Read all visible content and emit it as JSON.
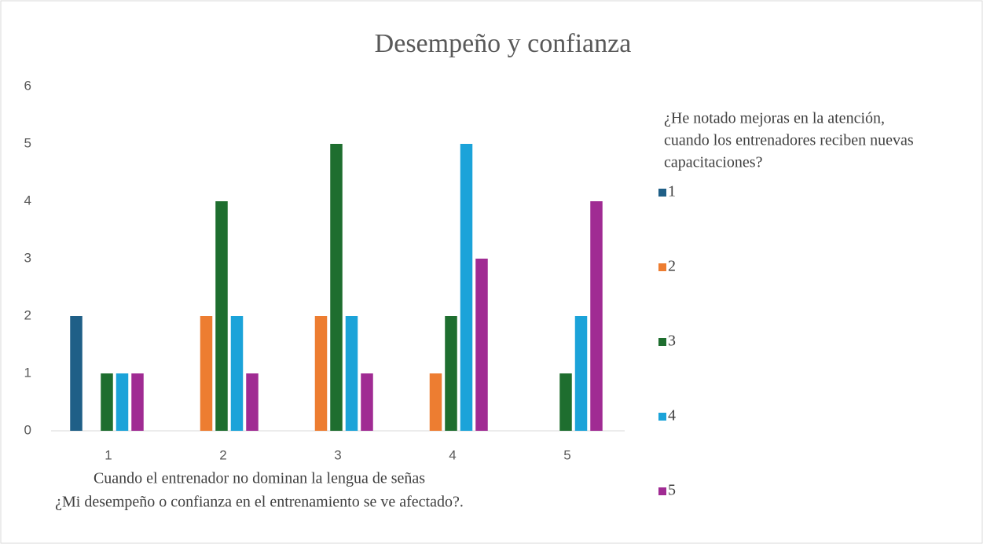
{
  "chart_data": {
    "type": "bar",
    "title": "Desempeño y confianza",
    "xlabel": [
      "Cuando el entrenador no dominan la lengua de señas",
      "¿Mi desempeño o confianza en el entrenamiento se ve afectado?."
    ],
    "legend_title": [
      "¿He notado mejoras en la atención,",
      "cuando los entrenadores reciben nuevas",
      "capacitaciones?"
    ],
    "legend": "right",
    "grid": false,
    "categories": [
      "1",
      "2",
      "3",
      "4",
      "5"
    ],
    "series": [
      {
        "name": "1",
        "color": "#1f5f87",
        "values": [
          2,
          0,
          0,
          0,
          0
        ]
      },
      {
        "name": "2",
        "color": "#ed7d31",
        "values": [
          0,
          2,
          2,
          1,
          0
        ]
      },
      {
        "name": "3",
        "color": "#1e6e2f",
        "values": [
          1,
          4,
          5,
          2,
          1
        ]
      },
      {
        "name": "4",
        "color": "#1ba3d9",
        "values": [
          1,
          2,
          2,
          5,
          2
        ]
      },
      {
        "name": "5",
        "color": "#a02b93",
        "values": [
          1,
          1,
          1,
          3,
          4
        ]
      }
    ],
    "ylim": [
      0,
      6
    ],
    "yticks": [
      0,
      1,
      2,
      3,
      4,
      5,
      6
    ]
  }
}
